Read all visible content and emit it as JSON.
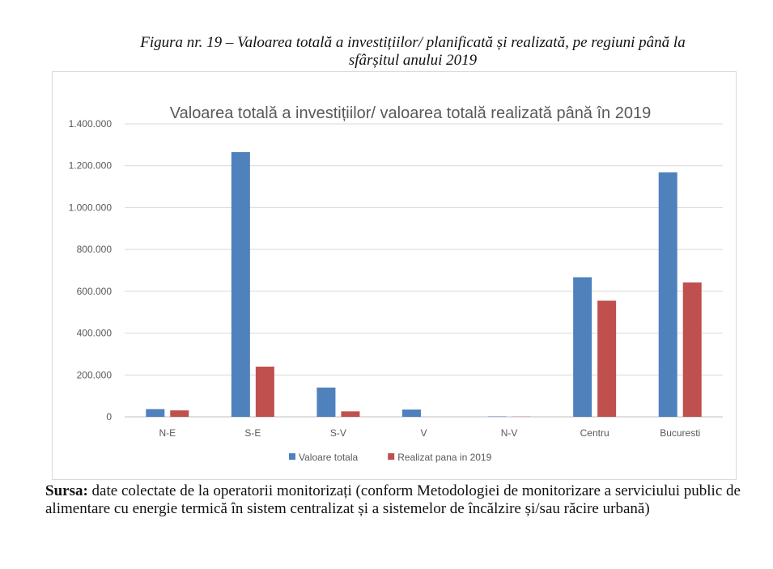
{
  "caption": {
    "line1": "Figura nr. 19 – Valoarea totală a investițiilor/ planificată și realizată, pe regiuni până la",
    "line2": "sfârșitul anului 2019"
  },
  "source": {
    "label": "Sursa:",
    "text": " date colectate de la operatorii monitorizați (conform Metodologiei de monitorizare a serviciului public de alimentare cu energie termică în sistem centralizat și a sistemelor de încălzire și/sau răcire urbană)"
  },
  "chart_data": {
    "type": "bar",
    "title": "Valoarea totală a investițiilor/ valoarea totală realizată până în 2019",
    "categories": [
      "N-E",
      "S-E",
      "S-V",
      "V",
      "N-V",
      "Centru",
      "Bucuresti"
    ],
    "series": [
      {
        "name": "Valoare totala",
        "color": "#4f81bd",
        "values": [
          37000,
          1265000,
          140000,
          35000,
          2000,
          667000,
          1168000
        ]
      },
      {
        "name": "Realizat pana in 2019",
        "color": "#c0504d",
        "values": [
          31000,
          240000,
          26000,
          0,
          1000,
          555000,
          642000
        ]
      }
    ],
    "ylim": [
      0,
      1400000
    ],
    "yticks": [
      "0",
      "200.000",
      "400.000",
      "600.000",
      "800.000",
      "1.000.000",
      "1.200.000",
      "1.400.000"
    ],
    "grid": true,
    "legend": "bottom"
  }
}
